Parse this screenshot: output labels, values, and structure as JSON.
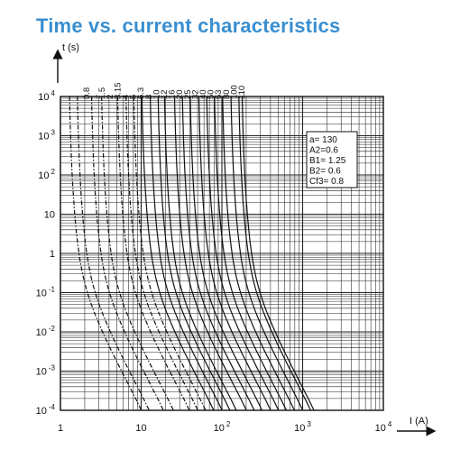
{
  "title": "Time vs. current characteristics",
  "chart_data": {
    "type": "line",
    "title": "Time vs. current characteristics",
    "xlabel": "I (A)",
    "ylabel": "t (s)",
    "xscale": "log",
    "yscale": "log",
    "xlim": [
      1,
      10000
    ],
    "ylim": [
      0.0001,
      10000
    ],
    "grid": true,
    "x_ticks": [
      {
        "base": "1",
        "exp": ""
      },
      {
        "base": "10",
        "exp": ""
      },
      {
        "base": "10",
        "exp": "2"
      },
      {
        "base": "10",
        "exp": "3"
      },
      {
        "base": "10",
        "exp": "4"
      }
    ],
    "y_ticks": [
      {
        "base": "10",
        "exp": "-4"
      },
      {
        "base": "10",
        "exp": "-3"
      },
      {
        "base": "10",
        "exp": "-2"
      },
      {
        "base": "10",
        "exp": "-1"
      },
      {
        "base": "1",
        "exp": ""
      },
      {
        "base": "10",
        "exp": ""
      },
      {
        "base": "10",
        "exp": "2"
      },
      {
        "base": "10",
        "exp": "3"
      },
      {
        "base": "10",
        "exp": "4"
      }
    ],
    "params_box": [
      "a= 130",
      "A2=0.6",
      "B1= 1.25",
      "B2= 0.6",
      "Cf3= 0.8"
    ],
    "series": [
      {
        "name": "0.8",
        "rating": 0.8,
        "dashed": true
      },
      {
        "name": "1",
        "rating": 1,
        "dashed": true
      },
      {
        "name": "1.5",
        "rating": 1.5,
        "dashed": true
      },
      {
        "name": "2",
        "rating": 2,
        "dashed": true
      },
      {
        "name": "3.15",
        "rating": 3.15,
        "dashed": true
      },
      {
        "name": "4",
        "rating": 4,
        "dashed": true
      },
      {
        "name": "5",
        "rating": 5,
        "dashed": true
      },
      {
        "name": "6.3",
        "rating": 6.3,
        "dashed": false
      },
      {
        "name": "8",
        "rating": 8,
        "dashed": false
      },
      {
        "name": "10",
        "rating": 10,
        "dashed": false
      },
      {
        "name": "12",
        "rating": 12,
        "dashed": false
      },
      {
        "name": "16",
        "rating": 16,
        "dashed": false
      },
      {
        "name": "20",
        "rating": 20,
        "dashed": false
      },
      {
        "name": "25",
        "rating": 25,
        "dashed": false
      },
      {
        "name": "32",
        "rating": 32,
        "dashed": false
      },
      {
        "name": "40",
        "rating": 40,
        "dashed": false
      },
      {
        "name": "50",
        "rating": 50,
        "dashed": false
      },
      {
        "name": "63",
        "rating": 63,
        "dashed": false
      },
      {
        "name": "80",
        "rating": 80,
        "dashed": false
      },
      {
        "name": "100",
        "rating": 100,
        "dashed": false
      },
      {
        "name": "110",
        "rating": 110,
        "dashed": false
      }
    ]
  }
}
